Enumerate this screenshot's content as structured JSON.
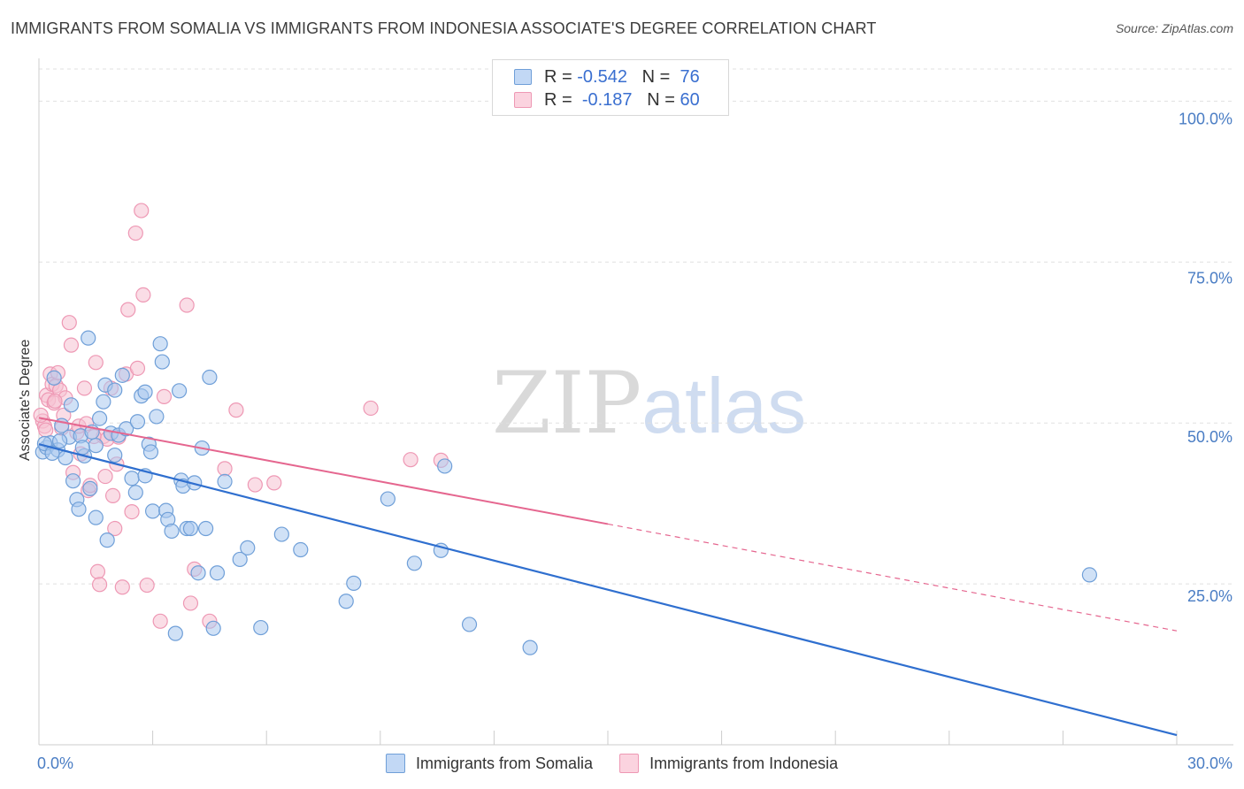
{
  "title": "IMMIGRANTS FROM SOMALIA VS IMMIGRANTS FROM INDONESIA ASSOCIATE'S DEGREE CORRELATION CHART",
  "source": "Source: ZipAtlas.com",
  "watermark": {
    "zip": "ZIP",
    "atlas": "atlas"
  },
  "legend": {
    "rows": [
      {
        "r_label": "R =",
        "r_value": "-0.542",
        "n_label": "N =",
        "n_value": "76"
      },
      {
        "r_label": "R =",
        "r_value": "-0.187",
        "n_label": "N =",
        "n_value": "60"
      }
    ]
  },
  "colors": {
    "somalia_fill": "#aac8ee",
    "somalia_stroke": "#6f9fd8",
    "somalia_line": "#2f6fcf",
    "indonesia_fill": "#f6c1d2",
    "indonesia_stroke": "#ee98b4",
    "indonesia_line": "#e5668f",
    "tick_text": "#4a7dc4",
    "grid": "#e0e0e0"
  },
  "chart_data": {
    "type": "scatter",
    "title": "IMMIGRANTS FROM SOMALIA VS IMMIGRANTS FROM INDONESIA ASSOCIATE'S DEGREE CORRELATION CHART",
    "xlabel": "",
    "ylabel": "Associate's Degree",
    "xlim": [
      0,
      30
    ],
    "ylim": [
      0,
      105
    ],
    "x_tick_labels": [
      "0.0%",
      "30.0%"
    ],
    "y_ticks": [
      25,
      50,
      75,
      100
    ],
    "y_tick_labels": [
      "25.0%",
      "50.0%",
      "75.0%",
      "100.0%"
    ],
    "grid": true,
    "legend_position": "top-center",
    "series": [
      {
        "name": "Immigrants from Somalia",
        "r": -0.542,
        "n": 76,
        "trend": {
          "x": [
            0,
            30
          ],
          "y": [
            46.7,
            1.5
          ]
        },
        "points": [
          [
            0.1,
            45.5
          ],
          [
            0.2,
            46.2
          ],
          [
            0.3,
            46.9
          ],
          [
            0.4,
            57.0
          ],
          [
            0.5,
            45.8
          ],
          [
            0.6,
            49.6
          ],
          [
            0.7,
            44.6
          ],
          [
            0.8,
            47.8
          ],
          [
            0.85,
            52.8
          ],
          [
            0.9,
            41.0
          ],
          [
            1.0,
            38.1
          ],
          [
            1.05,
            36.6
          ],
          [
            1.1,
            48.0
          ],
          [
            1.2,
            44.9
          ],
          [
            1.35,
            39.8
          ],
          [
            1.4,
            48.6
          ],
          [
            1.5,
            46.5
          ],
          [
            1.5,
            35.3
          ],
          [
            1.6,
            50.7
          ],
          [
            1.7,
            53.3
          ],
          [
            1.75,
            55.9
          ],
          [
            1.8,
            31.8
          ],
          [
            1.9,
            48.4
          ],
          [
            2.0,
            55.1
          ],
          [
            2.0,
            45.0
          ],
          [
            2.1,
            48.1
          ],
          [
            2.2,
            57.4
          ],
          [
            2.3,
            49.1
          ],
          [
            2.45,
            41.4
          ],
          [
            2.55,
            39.2
          ],
          [
            2.6,
            50.2
          ],
          [
            2.7,
            54.2
          ],
          [
            2.8,
            54.8
          ],
          [
            2.8,
            41.8
          ],
          [
            2.9,
            46.7
          ],
          [
            3.0,
            36.3
          ],
          [
            3.1,
            51.0
          ],
          [
            3.2,
            62.3
          ],
          [
            3.25,
            59.5
          ],
          [
            3.35,
            36.4
          ],
          [
            3.4,
            35.0
          ],
          [
            3.5,
            33.2
          ],
          [
            3.6,
            17.3
          ],
          [
            3.7,
            55.0
          ],
          [
            3.75,
            41.1
          ],
          [
            3.8,
            40.2
          ],
          [
            3.9,
            33.6
          ],
          [
            4.0,
            33.6
          ],
          [
            4.1,
            40.7
          ],
          [
            4.2,
            26.7
          ],
          [
            4.3,
            46.1
          ],
          [
            4.4,
            33.6
          ],
          [
            4.5,
            57.1
          ],
          [
            4.6,
            18.1
          ],
          [
            4.7,
            26.7
          ],
          [
            4.9,
            40.9
          ],
          [
            5.3,
            28.8
          ],
          [
            5.5,
            30.6
          ],
          [
            5.85,
            18.2
          ],
          [
            6.4,
            32.7
          ],
          [
            6.9,
            30.3
          ],
          [
            8.1,
            22.3
          ],
          [
            8.3,
            25.1
          ],
          [
            9.2,
            38.2
          ],
          [
            9.9,
            28.2
          ],
          [
            10.6,
            30.2
          ],
          [
            10.7,
            43.3
          ],
          [
            11.35,
            18.7
          ],
          [
            12.95,
            15.1
          ],
          [
            27.7,
            26.4
          ],
          [
            1.3,
            63.2
          ],
          [
            0.15,
            46.8
          ],
          [
            0.35,
            45.3
          ],
          [
            0.55,
            47.2
          ],
          [
            2.95,
            45.5
          ],
          [
            1.15,
            46.2
          ]
        ]
      },
      {
        "name": "Immigrants from Indonesia",
        "r": -0.187,
        "n": 60,
        "trend": {
          "x": [
            0,
            15
          ],
          "y": [
            50.8,
            34.3
          ]
        },
        "trend_dashed": {
          "x": [
            15,
            30
          ],
          "y": [
            34.3,
            17.7
          ]
        },
        "points": [
          [
            0.1,
            50.3
          ],
          [
            0.15,
            49.5
          ],
          [
            0.2,
            54.3
          ],
          [
            0.25,
            53.6
          ],
          [
            0.3,
            57.6
          ],
          [
            0.35,
            56.0
          ],
          [
            0.4,
            53.1
          ],
          [
            0.45,
            55.8
          ],
          [
            0.5,
            57.8
          ],
          [
            0.55,
            55.1
          ],
          [
            0.6,
            49.2
          ],
          [
            0.65,
            51.2
          ],
          [
            0.7,
            53.9
          ],
          [
            0.8,
            65.6
          ],
          [
            0.85,
            62.1
          ],
          [
            0.9,
            42.3
          ],
          [
            1.0,
            48.5
          ],
          [
            1.05,
            49.5
          ],
          [
            1.1,
            45.2
          ],
          [
            1.2,
            55.4
          ],
          [
            1.25,
            49.9
          ],
          [
            1.3,
            39.5
          ],
          [
            1.35,
            40.3
          ],
          [
            1.5,
            59.4
          ],
          [
            1.55,
            26.9
          ],
          [
            1.6,
            24.9
          ],
          [
            1.7,
            47.9
          ],
          [
            1.75,
            41.7
          ],
          [
            1.8,
            47.5
          ],
          [
            1.9,
            55.4
          ],
          [
            1.95,
            38.7
          ],
          [
            2.0,
            33.6
          ],
          [
            2.1,
            47.8
          ],
          [
            2.2,
            24.5
          ],
          [
            2.3,
            57.6
          ],
          [
            2.35,
            67.6
          ],
          [
            2.45,
            36.2
          ],
          [
            2.55,
            79.5
          ],
          [
            2.6,
            58.5
          ],
          [
            2.7,
            83.0
          ],
          [
            2.75,
            69.9
          ],
          [
            2.85,
            24.8
          ],
          [
            3.2,
            19.2
          ],
          [
            3.3,
            54.1
          ],
          [
            3.9,
            68.3
          ],
          [
            4.0,
            22.0
          ],
          [
            4.1,
            27.3
          ],
          [
            4.5,
            19.2
          ],
          [
            4.9,
            42.9
          ],
          [
            5.2,
            52.0
          ],
          [
            5.7,
            40.4
          ],
          [
            6.2,
            40.7
          ],
          [
            8.75,
            52.3
          ],
          [
            9.8,
            44.3
          ],
          [
            10.6,
            44.2
          ],
          [
            0.05,
            51.2
          ],
          [
            0.18,
            48.9
          ],
          [
            0.42,
            53.4
          ],
          [
            1.45,
            47.9
          ],
          [
            2.05,
            43.6
          ]
        ]
      }
    ]
  },
  "bottom_legend": [
    "Immigrants from Somalia",
    "Immigrants from Indonesia"
  ]
}
